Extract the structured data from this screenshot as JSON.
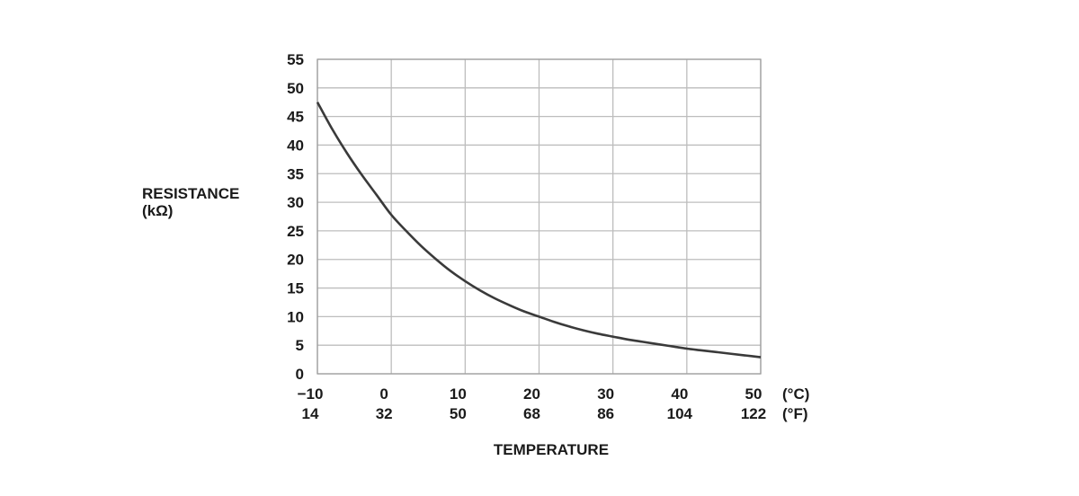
{
  "chart_data": {
    "type": "line",
    "title": "",
    "ylabel": [
      "RESISTANCE",
      "(kΩ)"
    ],
    "xlabel": "TEMPERATURE",
    "xlim": [
      -10,
      50
    ],
    "ylim": [
      0,
      55
    ],
    "grid": true,
    "x_ticks_c": [
      "−10",
      "0",
      "10",
      "20",
      "30",
      "40",
      "50"
    ],
    "x_ticks_f": [
      "14",
      "32",
      "50",
      "68",
      "86",
      "104",
      "122"
    ],
    "x_unit_c": "(°C)",
    "x_unit_f": "(°F)",
    "y_ticks": [
      "55",
      "50",
      "45",
      "40",
      "35",
      "30",
      "25",
      "20",
      "15",
      "10",
      "5",
      "0"
    ],
    "series": [
      {
        "x": [
          -10,
          -8,
          -6,
          -4,
          -2,
          0,
          2,
          4,
          6,
          8,
          10,
          12,
          14,
          16,
          18,
          20,
          22,
          24,
          26,
          28,
          30,
          32,
          34,
          36,
          38,
          40,
          42,
          44,
          46,
          48,
          50
        ],
        "y": [
          47.5,
          42.8,
          38.6,
          34.8,
          31.3,
          27.8,
          25.0,
          22.4,
          20.1,
          18.0,
          16.2,
          14.6,
          13.2,
          12.0,
          10.9,
          10.0,
          9.1,
          8.3,
          7.6,
          7.0,
          6.5,
          6.0,
          5.6,
          5.2,
          4.8,
          4.4,
          4.1,
          3.8,
          3.5,
          3.2,
          2.9
        ]
      }
    ]
  }
}
